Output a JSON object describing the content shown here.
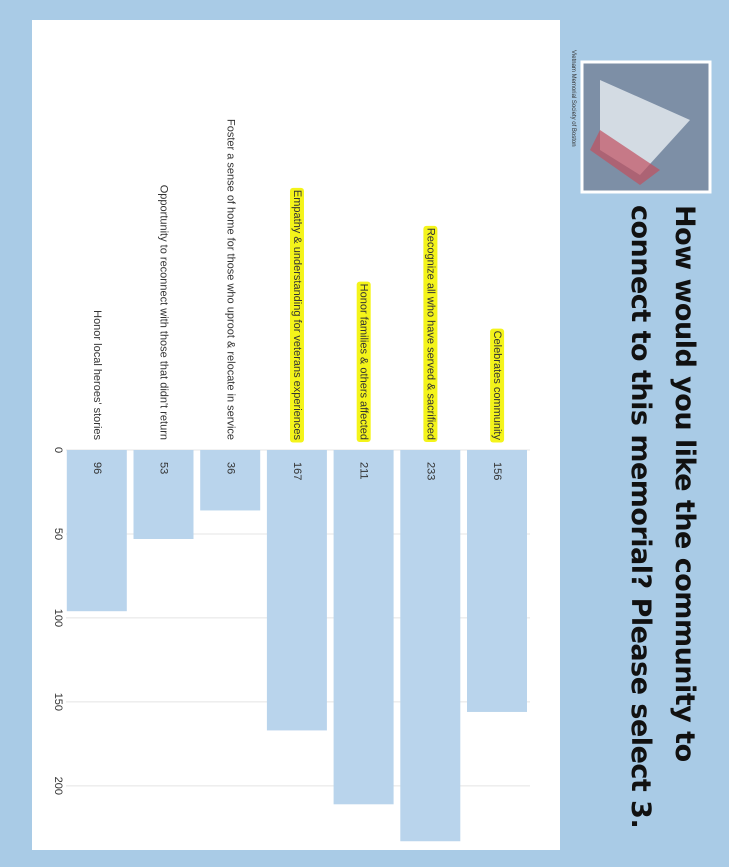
{
  "org": "Vietnam Memorial Society of Boston",
  "chart_data": {
    "type": "bar",
    "orientation": "horizontal",
    "title": "How would you like the community to connect to this memorial? Please select 3.",
    "categories": [
      "Celebrates community",
      "Recognize all who have served & sacrificed",
      "Honor families & others affected",
      "Empathy & understanding for veterans experiences",
      "Foster a sense of home for those who uproot & relocate in service",
      "Opportunity to reconnect with those that didn't return",
      "Honor local heroes' stories"
    ],
    "values": [
      156,
      233,
      211,
      167,
      36,
      53,
      96
    ],
    "highlighted": [
      true,
      true,
      true,
      true,
      false,
      false,
      false
    ],
    "highlight_color": "#f4f41a",
    "color": "#b9d4ec",
    "xlim": [
      0,
      240
    ],
    "xticks": [
      0,
      50,
      100,
      150,
      200
    ],
    "grid": true
  }
}
